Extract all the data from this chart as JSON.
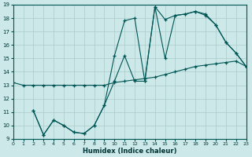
{
  "xlabel": "Humidex (Indice chaleur)",
  "bg_color": "#cce8e8",
  "grid_color": "#aacccc",
  "line_color": "#005555",
  "xlim": [
    0,
    23
  ],
  "ylim": [
    9,
    19
  ],
  "xticks": [
    0,
    1,
    2,
    3,
    4,
    5,
    6,
    7,
    8,
    9,
    10,
    11,
    12,
    13,
    14,
    15,
    16,
    17,
    18,
    19,
    20,
    21,
    22,
    23
  ],
  "yticks": [
    9,
    10,
    11,
    12,
    13,
    14,
    15,
    16,
    17,
    18,
    19
  ],
  "line1_x": [
    0,
    1,
    2,
    3,
    4,
    5,
    6,
    7,
    8,
    9,
    10,
    11,
    12,
    13,
    14,
    15,
    16,
    17,
    18,
    19,
    20,
    21,
    22,
    23
  ],
  "line1_y": [
    13.2,
    13.0,
    13.0,
    13.0,
    13.0,
    13.0,
    13.0,
    13.0,
    13.0,
    13.0,
    13.2,
    13.3,
    13.4,
    13.5,
    13.6,
    13.8,
    14.0,
    14.2,
    14.4,
    14.5,
    14.6,
    14.7,
    14.8,
    14.4
  ],
  "line2_x": [
    2,
    3,
    4,
    5,
    6,
    7,
    8,
    9,
    10,
    11,
    12,
    13,
    14,
    15,
    16,
    17,
    18,
    19,
    20,
    21,
    22,
    23
  ],
  "line2_y": [
    11.1,
    9.3,
    10.4,
    10.0,
    9.5,
    9.4,
    10.0,
    11.5,
    13.3,
    15.2,
    13.3,
    13.3,
    18.85,
    15.0,
    18.2,
    18.3,
    18.5,
    18.3,
    17.5,
    16.2,
    15.4,
    14.4
  ],
  "line3_x": [
    2,
    3,
    4,
    5,
    6,
    7,
    8,
    9,
    10,
    11,
    12,
    13,
    14,
    15,
    16,
    17,
    18,
    19,
    20,
    21,
    22,
    23
  ],
  "line3_y": [
    11.1,
    9.3,
    10.4,
    10.0,
    9.5,
    9.4,
    10.0,
    11.5,
    15.2,
    17.8,
    18.0,
    13.3,
    18.85,
    17.9,
    18.2,
    18.3,
    18.5,
    18.2,
    17.5,
    16.2,
    15.4,
    14.4
  ]
}
